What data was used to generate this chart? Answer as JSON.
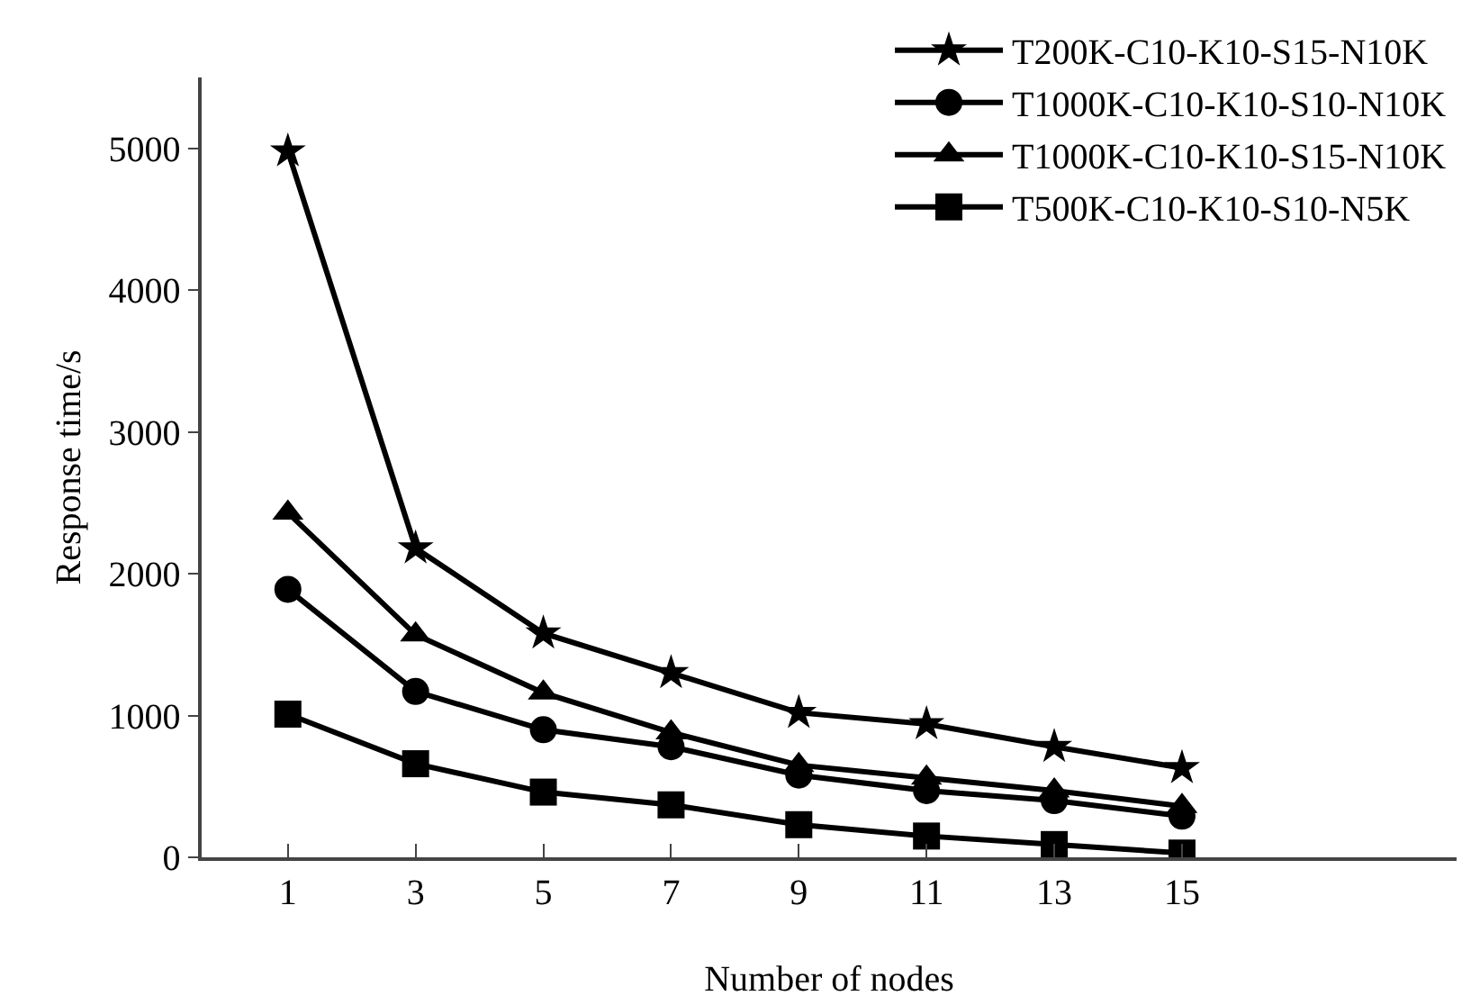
{
  "chart_data": {
    "type": "line",
    "xlabel": "Number of nodes",
    "ylabel": "Response time/s",
    "x": [
      1,
      3,
      5,
      7,
      9,
      11,
      13,
      15
    ],
    "xlim": [
      -0.35,
      19.3
    ],
    "xticks": [
      1,
      3,
      5,
      7,
      9,
      11,
      13,
      15
    ],
    "ylim": [
      0,
      5500
    ],
    "yticks": [
      0,
      1000,
      2000,
      3000,
      4000,
      5000
    ],
    "grid": false,
    "legend": "top right",
    "line_style": "solid",
    "series": [
      {
        "name": "T200K-C10-K10-S15-N10K",
        "color": "#000000",
        "marker": "star",
        "values": [
          4980,
          2180,
          1580,
          1300,
          1020,
          940,
          780,
          630
        ]
      },
      {
        "name": "T1000K-C10-K10-S10-N10K",
        "color": "#000000",
        "marker": "circle",
        "values": [
          1890,
          1170,
          900,
          780,
          580,
          470,
          400,
          290
        ]
      },
      {
        "name": "T1000K-C10-K10-S15-N10K",
        "color": "#000000",
        "marker": "triangle",
        "values": [
          2430,
          1570,
          1160,
          880,
          650,
          560,
          470,
          360
        ]
      },
      {
        "name": "T500K-C10-K10-S10-N5K",
        "color": "#000000",
        "marker": "square",
        "values": [
          1010,
          660,
          460,
          370,
          230,
          150,
          90,
          30
        ]
      }
    ]
  }
}
